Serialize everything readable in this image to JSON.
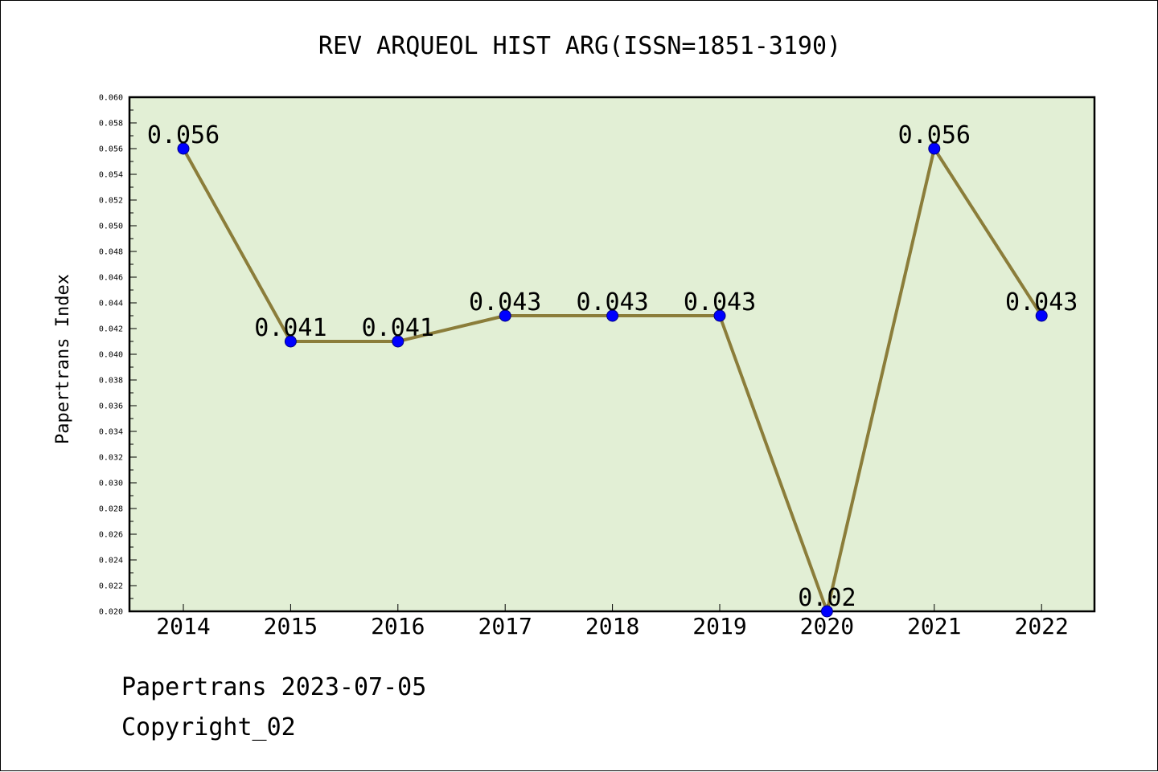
{
  "chart_data": {
    "type": "line",
    "title": "REV ARQUEOL HIST ARG(ISSN=1851-3190)",
    "xlabel": "",
    "ylabel": "Papertrans Index",
    "categories": [
      "2014",
      "2015",
      "2016",
      "2017",
      "2018",
      "2019",
      "2020",
      "2021",
      "2022"
    ],
    "values": [
      0.056,
      0.041,
      0.041,
      0.043,
      0.043,
      0.043,
      0.02,
      0.056,
      0.043
    ],
    "data_labels": [
      "0.056",
      "0.041",
      "0.041",
      "0.043",
      "0.043",
      "0.043",
      "0.02",
      "0.056",
      "0.043"
    ],
    "ylim": [
      0.02,
      0.06
    ],
    "yticks": [
      "0.020",
      "0.022",
      "0.024",
      "0.026",
      "0.028",
      "0.030",
      "0.032",
      "0.034",
      "0.036",
      "0.038",
      "0.040",
      "0.042",
      "0.044",
      "0.046",
      "0.048",
      "0.050",
      "0.052",
      "0.054",
      "0.056",
      "0.058",
      "0.060"
    ],
    "grid": false,
    "colors": {
      "line": "#8B7D3A",
      "marker": "#0000FF",
      "plot_background": "#E2EFD5"
    }
  },
  "footer": {
    "line1": "Papertrans 2023-07-05",
    "line2": "Copyright_02"
  }
}
